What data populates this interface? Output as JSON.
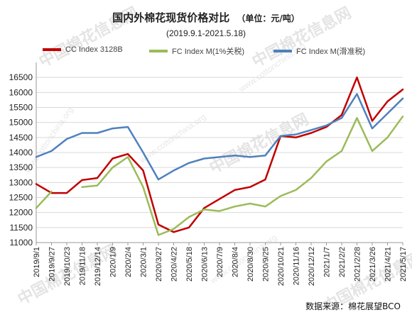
{
  "header": {
    "title": "国内外棉花现货价格对比",
    "unit": "（单位：元/吨）",
    "subtitle": "(2019.9.1-2021.5.18)"
  },
  "watermark": {
    "text_cn": "中国棉花信息网",
    "text_en": "www.cottonchina.org"
  },
  "source": "数据来源：棉花展望BCO",
  "chart_data": {
    "type": "line",
    "title": "国内外棉花现货价格对比",
    "subtitle": "(2019.9.1-2021.5.18)",
    "xlabel": "",
    "ylabel": "",
    "ylim": [
      11000,
      17000
    ],
    "yticks": [
      11000,
      11500,
      12000,
      12500,
      13000,
      13500,
      14000,
      14500,
      15000,
      15500,
      16000,
      16500
    ],
    "x_categories": [
      "2019/9/1",
      "2019/9/27",
      "2019/10/23",
      "2019/11/18",
      "2019/12/14",
      "2020/1/9",
      "2020/2/4",
      "2020/3/1",
      "2020/3/27",
      "2020/4/22",
      "2020/5/18",
      "2020/6/13",
      "2020/7/9",
      "2020/8/4",
      "2020/8/30",
      "2020/9/25",
      "2020/10/21",
      "2020/11/16",
      "2020/12/12",
      "2021/1/7",
      "2021/2/2",
      "2021/2/28",
      "2021/3/26",
      "2021/4/21",
      "2021/5/17"
    ],
    "grid": true,
    "legend_position": "top",
    "series": [
      {
        "name": "CC Index 3128B",
        "color": "#c00000",
        "values": [
          12950,
          12650,
          12650,
          13080,
          13150,
          13800,
          13950,
          13400,
          11600,
          11350,
          11500,
          12150,
          12450,
          12750,
          12850,
          13100,
          14550,
          14500,
          14650,
          14850,
          15250,
          16500,
          15050,
          15700,
          16100
        ]
      },
      {
        "name": "FC Index M(1%关税)",
        "color": "#9bbb59",
        "values": [
          12150,
          12700,
          null,
          12850,
          12900,
          13500,
          13850,
          12850,
          11250,
          11450,
          11850,
          12100,
          12050,
          12200,
          12300,
          12200,
          12550,
          12750,
          13150,
          13700,
          14050,
          15150,
          14050,
          14500,
          15200
        ]
      },
      {
        "name": "FC Index M(滑准税)",
        "color": "#4f81bd",
        "values": [
          13850,
          14050,
          14450,
          14650,
          14650,
          14800,
          14850,
          14000,
          13100,
          13400,
          13650,
          13800,
          13850,
          13900,
          13850,
          13900,
          14550,
          14600,
          14750,
          14900,
          15150,
          15950,
          14800,
          15300,
          15800
        ]
      }
    ]
  }
}
